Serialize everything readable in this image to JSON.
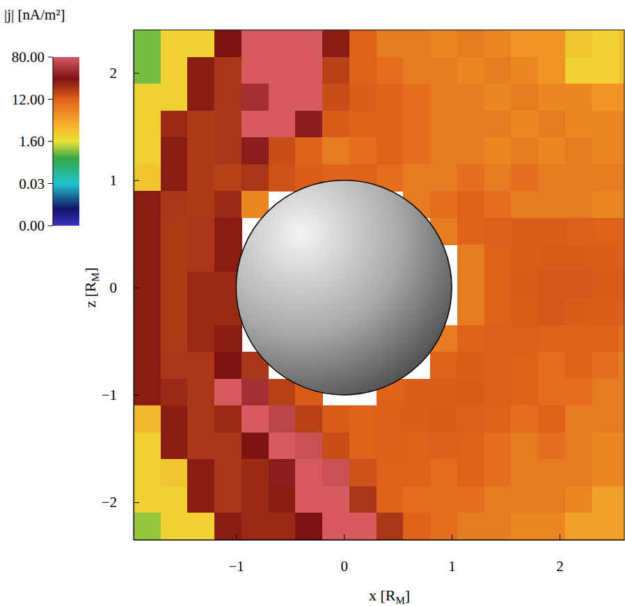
{
  "chart_data": {
    "type": "heatmap",
    "x_label": {
      "text": "x [R",
      "sub": "M",
      "end": "]"
    },
    "y_label": {
      "text": "z [R",
      "sub": "M",
      "end": "]"
    },
    "xlim": [
      -1.95,
      2.6
    ],
    "ylim": [
      -2.35,
      2.4
    ],
    "xticks": [
      {
        "value": -1,
        "label": "−1"
      },
      0,
      1,
      2
    ],
    "yticks": [
      {
        "value": -2,
        "label": "−2"
      },
      {
        "value": -1,
        "label": "−1"
      },
      0,
      1,
      2
    ],
    "x": [
      -1.825,
      -1.575,
      -1.325,
      -1.075,
      -0.825,
      -0.575,
      -0.325,
      -0.075,
      0.175,
      0.425,
      0.675,
      0.925,
      1.175,
      1.425,
      1.675,
      1.925,
      2.175,
      2.425,
      2.675
    ],
    "y": [
      2.275,
      2.025,
      1.775,
      1.525,
      1.275,
      1.025,
      0.775,
      0.525,
      0.275,
      0.025,
      -0.225,
      -0.475,
      -0.725,
      -0.975,
      -1.225,
      -1.475,
      -1.725,
      -1.975,
      -2.225
    ],
    "cells": [
      [
        1.2,
        3,
        3,
        45,
        80,
        80,
        80,
        40,
        12,
        10,
        10,
        9,
        10,
        9,
        8,
        8,
        4,
        3,
        4
      ],
      [
        1.2,
        3,
        40,
        30,
        80,
        80,
        80,
        25,
        12,
        11,
        10,
        10,
        9,
        10,
        9,
        8,
        3,
        3,
        4
      ],
      [
        3,
        3,
        40,
        30,
        60,
        80,
        80,
        20,
        14,
        12,
        11,
        10,
        10,
        9,
        10,
        9,
        9,
        8,
        8
      ],
      [
        3,
        35,
        28,
        30,
        80,
        80,
        50,
        15,
        12,
        12,
        11,
        10,
        10,
        10,
        9,
        10,
        9,
        9,
        9
      ],
      [
        3,
        40,
        28,
        30,
        50,
        20,
        12,
        10,
        11,
        12,
        11,
        10,
        10,
        9,
        10,
        9,
        10,
        9,
        9
      ],
      [
        4,
        40,
        28,
        25,
        30,
        18,
        14,
        12,
        12,
        11,
        10,
        10,
        11,
        10,
        11,
        10,
        10,
        10,
        10
      ],
      [
        40,
        30,
        28,
        35,
        9,
        null,
        null,
        null,
        null,
        null,
        10,
        11,
        12,
        11,
        10,
        10,
        10,
        9,
        9
      ],
      [
        40,
        28,
        30,
        40,
        null,
        null,
        null,
        null,
        null,
        null,
        null,
        10,
        12,
        13,
        14,
        14,
        13,
        12,
        12
      ],
      [
        40,
        28,
        30,
        40,
        null,
        null,
        null,
        null,
        null,
        null,
        null,
        null,
        10,
        12,
        14,
        15,
        15,
        14,
        13
      ],
      [
        40,
        28,
        35,
        35,
        null,
        null,
        null,
        null,
        null,
        null,
        null,
        null,
        10,
        12,
        15,
        16,
        16,
        15,
        14
      ],
      [
        40,
        28,
        35,
        35,
        null,
        null,
        null,
        null,
        null,
        null,
        null,
        null,
        10,
        12,
        14,
        16,
        15,
        14,
        13
      ],
      [
        40,
        28,
        35,
        40,
        null,
        null,
        null,
        null,
        null,
        null,
        null,
        10,
        12,
        13,
        13,
        12,
        12,
        12,
        11
      ],
      [
        40,
        30,
        30,
        45,
        30,
        null,
        null,
        null,
        null,
        null,
        null,
        12,
        14,
        13,
        12,
        11,
        12,
        11,
        10
      ],
      [
        40,
        35,
        30,
        80,
        60,
        25,
        15,
        null,
        null,
        12,
        14,
        14,
        15,
        13,
        12,
        11,
        11,
        10,
        10
      ],
      [
        5,
        40,
        30,
        35,
        80,
        70,
        25,
        15,
        12,
        13,
        14,
        15,
        13,
        12,
        11,
        12,
        10,
        10,
        10
      ],
      [
        3,
        40,
        30,
        30,
        45,
        80,
        75,
        20,
        12,
        13,
        12,
        13,
        12,
        11,
        10,
        11,
        10,
        9,
        9
      ],
      [
        3,
        4,
        40,
        30,
        35,
        50,
        80,
        75,
        18,
        12,
        12,
        11,
        12,
        11,
        10,
        10,
        10,
        9,
        9
      ],
      [
        3,
        3,
        40,
        30,
        35,
        40,
        80,
        80,
        30,
        12,
        11,
        11,
        11,
        10,
        10,
        10,
        9,
        7,
        7
      ],
      [
        1.3,
        3,
        3,
        40,
        35,
        35,
        45,
        80,
        80,
        30,
        12,
        11,
        10,
        10,
        9,
        9,
        7,
        7,
        7
      ]
    ],
    "colorbar": {
      "label": "|j| [nA/m²]",
      "range": [
        0,
        80
      ],
      "ticks": [
        {
          "value": 0,
          "label": "0.00"
        },
        {
          "value": 0.03,
          "label": "0.03"
        },
        {
          "value": 1.6,
          "label": "1.60"
        },
        {
          "value": 12,
          "label": "12.00"
        },
        {
          "value": 80,
          "label": "80.00"
        }
      ]
    },
    "planet": {
      "x": 0,
      "y": 0,
      "radius": 1
    }
  }
}
